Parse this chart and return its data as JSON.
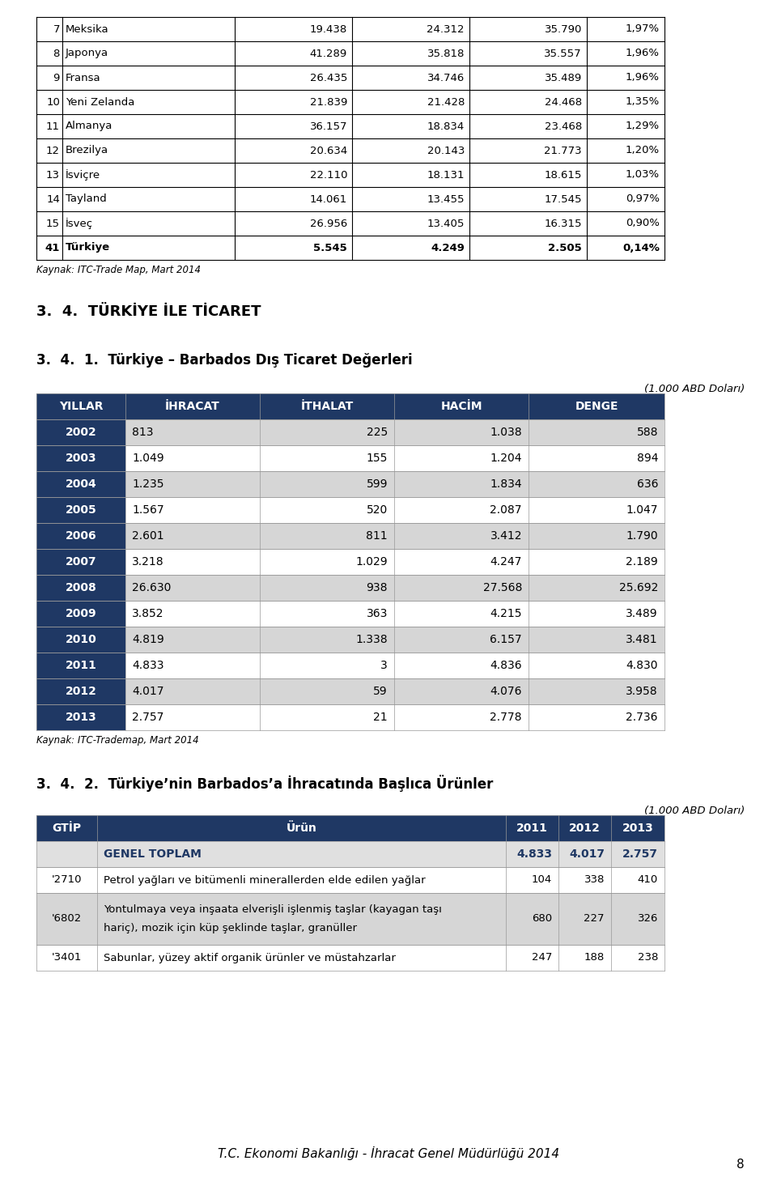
{
  "page_bg": "#ffffff",
  "top_table": {
    "rows": [
      [
        "7",
        "Meksika",
        "19.438",
        "24.312",
        "35.790",
        "1,97%"
      ],
      [
        "8",
        "Japonya",
        "41.289",
        "35.818",
        "35.557",
        "1,96%"
      ],
      [
        "9",
        "Fransa",
        "26.435",
        "34.746",
        "35.489",
        "1,96%"
      ],
      [
        "10",
        "Yeni Zelanda",
        "21.839",
        "21.428",
        "24.468",
        "1,35%"
      ],
      [
        "11",
        "Almanya",
        "36.157",
        "18.834",
        "23.468",
        "1,29%"
      ],
      [
        "12",
        "Brezilya",
        "20.634",
        "20.143",
        "21.773",
        "1,20%"
      ],
      [
        "13",
        "İsviçre",
        "22.110",
        "18.131",
        "18.615",
        "1,03%"
      ],
      [
        "14",
        "Tayland",
        "14.061",
        "13.455",
        "17.545",
        "0,97%"
      ],
      [
        "15",
        "İsveç",
        "26.956",
        "13.405",
        "16.315",
        "0,90%"
      ],
      [
        "41",
        "Türkiye",
        "5.545",
        "4.249",
        "2.505",
        "0,14%"
      ]
    ],
    "bold_last_row": true,
    "source_note": "Kaynak: ITC-Trade Map, Mart 2014"
  },
  "section_title1": "3.  4.  TÜRKİYE İLE TİCARET",
  "section_title2": "3.  4.  1.  Türkiye – Barbados Dış Ticaret Değerleri",
  "trade_table": {
    "unit_note": "(1.000 ABD Doları)",
    "headers": [
      "YILLAR",
      "İHRACAT",
      "İTHALAT",
      "HACİM",
      "DENGE"
    ],
    "rows": [
      [
        "2002",
        "813",
        "225",
        "1.038",
        "588"
      ],
      [
        "2003",
        "1.049",
        "155",
        "1.204",
        "894"
      ],
      [
        "2004",
        "1.235",
        "599",
        "1.834",
        "636"
      ],
      [
        "2005",
        "1.567",
        "520",
        "2.087",
        "1.047"
      ],
      [
        "2006",
        "2.601",
        "811",
        "3.412",
        "1.790"
      ],
      [
        "2007",
        "3.218",
        "1.029",
        "4.247",
        "2.189"
      ],
      [
        "2008",
        "26.630",
        "938",
        "27.568",
        "25.692"
      ],
      [
        "2009",
        "3.852",
        "363",
        "4.215",
        "3.489"
      ],
      [
        "2010",
        "4.819",
        "1.338",
        "6.157",
        "3.481"
      ],
      [
        "2011",
        "4.833",
        "3",
        "4.836",
        "4.830"
      ],
      [
        "2012",
        "4.017",
        "59",
        "4.076",
        "3.958"
      ],
      [
        "2013",
        "2.757",
        "21",
        "2.778",
        "2.736"
      ]
    ],
    "source_note": "Kaynak: ITC-Trademap, Mart 2014",
    "header_bg": "#1f3864",
    "header_fg": "#ffffff",
    "year_col_bg": "#1f3864",
    "year_col_fg": "#ffffff",
    "odd_row_bg": "#d6d6d6",
    "even_row_bg": "#ffffff"
  },
  "section_title3": "3.  4.  2.  Türkiye’nin Barbados’a İhracatında Başlıca Ürünler",
  "export_table": {
    "unit_note": "(1.000 ABD Doları)",
    "headers": [
      "GTİP",
      "Ürün",
      "2011",
      "2012",
      "2013"
    ],
    "genel_toplam": [
      "",
      "GENEL TOPLAM",
      "4.833",
      "4.017",
      "2.757"
    ],
    "rows": [
      [
        "'2710",
        "Petrol yağları ve bitümenli minerallerden elde edilen yağlar",
        "104",
        "338",
        "410"
      ],
      [
        "'6802",
        "Yontulmaya veya inşaata elverişli işlenmiş taşlar (kayagan taşı\nhariç), mozik için küp şeklinde taşlar, granüller",
        "680",
        "227",
        "326"
      ],
      [
        "'3401",
        "Sabunlar, yüzey aktif organik ürünler ve müstahzarlar",
        "247",
        "188",
        "238"
      ]
    ],
    "header_bg": "#1f3864",
    "header_fg": "#ffffff",
    "genel_toplam_fg": "#1f3864",
    "odd_row_bg": "#d6d6d6",
    "even_row_bg": "#ffffff"
  },
  "footer": "T.C. Ekonomi Bakanlığı - İhracat Genel Müdürlüğü 2014",
  "page_number": "8"
}
